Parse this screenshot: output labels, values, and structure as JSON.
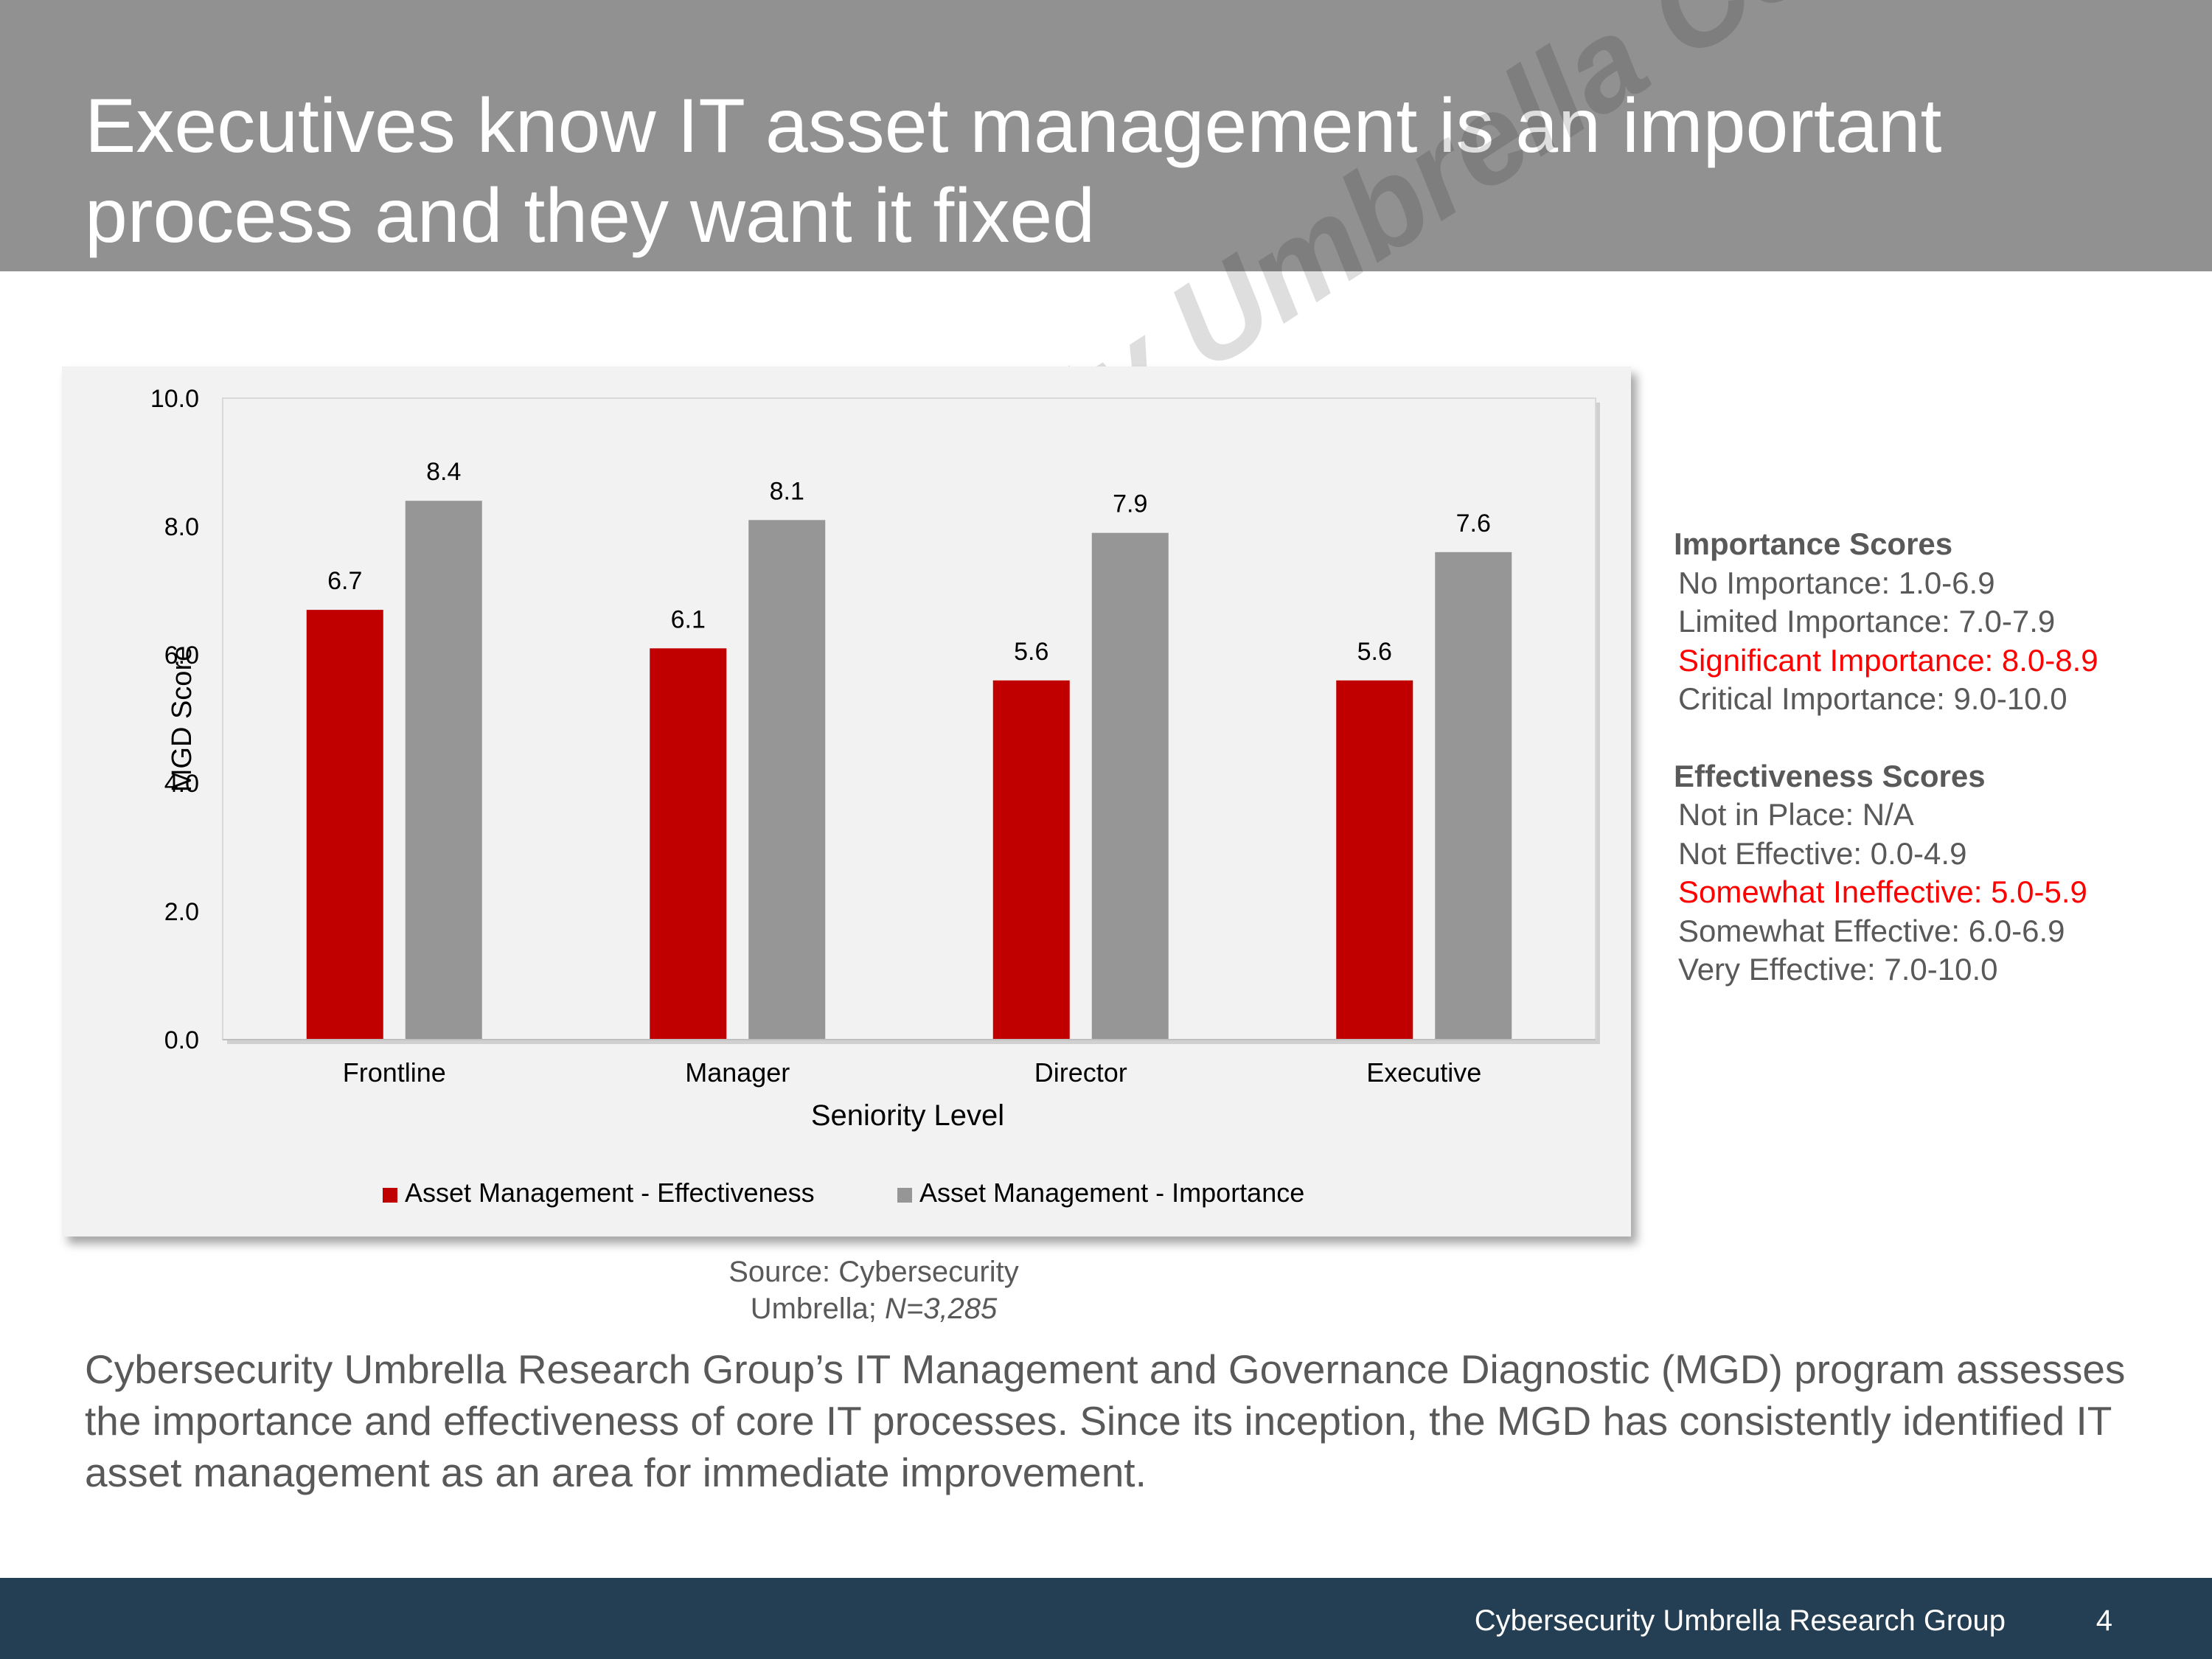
{
  "slide": {
    "title": "Executives know IT asset management is an important process and they want it fixed",
    "watermark": "Cybersecurity Umbrella Corp ™",
    "source_prefix": "Source: Cybersecurity Umbrella; ",
    "source_n": "N=3,285",
    "body": "Cybersecurity Umbrella Research Group’s IT Management and Governance Diagnostic (MGD) program assesses the importance and effectiveness of core IT processes. Since its inception, the MGD has consistently identified IT asset management as an area for immediate improvement.",
    "footer_org": "Cybersecurity Umbrella Research Group",
    "page_number": "4"
  },
  "scores": {
    "importance_heading": "Importance Scores",
    "importance": [
      {
        "text": "No Importance: 1.0-6.9",
        "highlight": false
      },
      {
        "text": "Limited Importance: 7.0-7.9",
        "highlight": false
      },
      {
        "text": "Significant Importance: 8.0-8.9",
        "highlight": true
      },
      {
        "text": "Critical Importance: 9.0-10.0",
        "highlight": false
      }
    ],
    "effectiveness_heading": "Effectiveness Scores",
    "effectiveness": [
      {
        "text": "Not in Place: N/A",
        "highlight": false
      },
      {
        "text": "Not Effective: 0.0-4.9",
        "highlight": false
      },
      {
        "text": "Somewhat Ineffective: 5.0-5.9",
        "highlight": true
      },
      {
        "text": "Somewhat Effective: 6.0-6.9",
        "highlight": false
      },
      {
        "text": "Very Effective: 7.0-10.0",
        "highlight": false
      }
    ]
  },
  "chart_data": {
    "type": "bar",
    "categories": [
      "Frontline",
      "Manager",
      "Director",
      "Executive"
    ],
    "series": [
      {
        "name": "Asset Management - Effectiveness",
        "values": [
          6.7,
          6.1,
          5.6,
          5.6
        ],
        "color": "#c00000"
      },
      {
        "name": "Asset Management - Importance",
        "values": [
          8.4,
          8.1,
          7.9,
          7.6
        ],
        "color": "#969696"
      }
    ],
    "xlabel": "Seniority Level",
    "ylabel": "MGD Score",
    "ylim": [
      0,
      10
    ],
    "yticks": [
      "0.0",
      "2.0",
      "4.0",
      "6.0",
      "8.0",
      "10.0"
    ],
    "data_labels": true,
    "legend": "bottom",
    "grid": false
  }
}
